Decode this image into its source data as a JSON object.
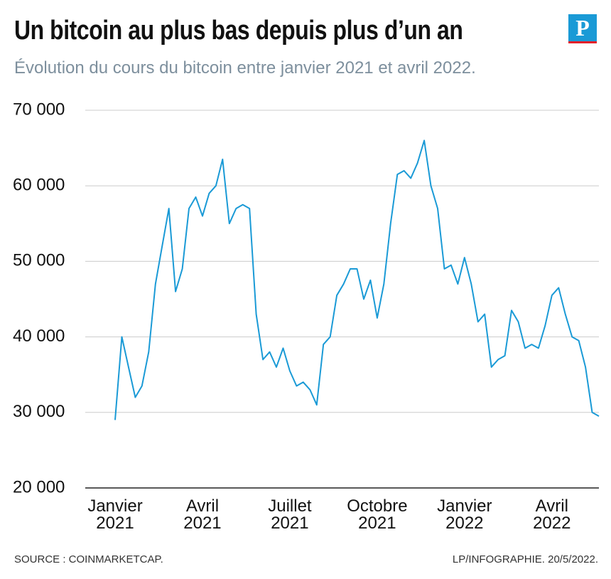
{
  "chart_data": {
    "type": "line",
    "title": "Un bitcoin au plus bas depuis plus d’un an",
    "subtitle": "Évolution du cours du bitcoin entre janvier 2021 et avril 2022.",
    "logo": "P",
    "source": "SOURCE : COINMARKETCAP.",
    "credit": "LP/INFOGRAPHIE.  20/5/2022.",
    "color": "#1a9ad6",
    "grid": true,
    "values": [
      29000,
      40000,
      36000,
      32000,
      33500,
      38000,
      47000,
      52000,
      57000,
      46000,
      49000,
      57000,
      58500,
      56000,
      59000,
      60000,
      63500,
      55000,
      57000,
      57500,
      57000,
      43000,
      37000,
      38000,
      36000,
      38500,
      35500,
      33500,
      34000,
      33000,
      31000,
      39000,
      40000,
      45500,
      47000,
      49000,
      49000,
      45000,
      47500,
      42500,
      47000,
      55000,
      61500,
      62000,
      61000,
      63000,
      66000,
      60000,
      57000,
      49000,
      49500,
      47000,
      50500,
      47000,
      42000,
      43000,
      36000,
      37000,
      37500,
      43500,
      42000,
      38500,
      39000,
      38500,
      41500,
      45500,
      46500,
      43000,
      40000,
      39500,
      36000,
      30000,
      29500
    ],
    "xlim": [
      0,
      72
    ],
    "xticks": [
      {
        "value": 0,
        "label": "Janvier 2021"
      },
      {
        "value": 13,
        "label": "Avril 2021"
      },
      {
        "value": 26,
        "label": "Juillet 2021"
      },
      {
        "value": 39,
        "label": "Octobre 2021"
      },
      {
        "value": 52,
        "label": "Janvier 2022"
      },
      {
        "value": 65,
        "label": "Avril 2022"
      }
    ],
    "ylim": [
      20000,
      70000
    ],
    "yticks": [
      {
        "value": 20000,
        "label": "20 000"
      },
      {
        "value": 30000,
        "label": "30 000"
      },
      {
        "value": 40000,
        "label": "40 000"
      },
      {
        "value": 50000,
        "label": "50 000"
      },
      {
        "value": 60000,
        "label": "60 000"
      },
      {
        "value": 70000,
        "label": "70 000"
      }
    ]
  }
}
